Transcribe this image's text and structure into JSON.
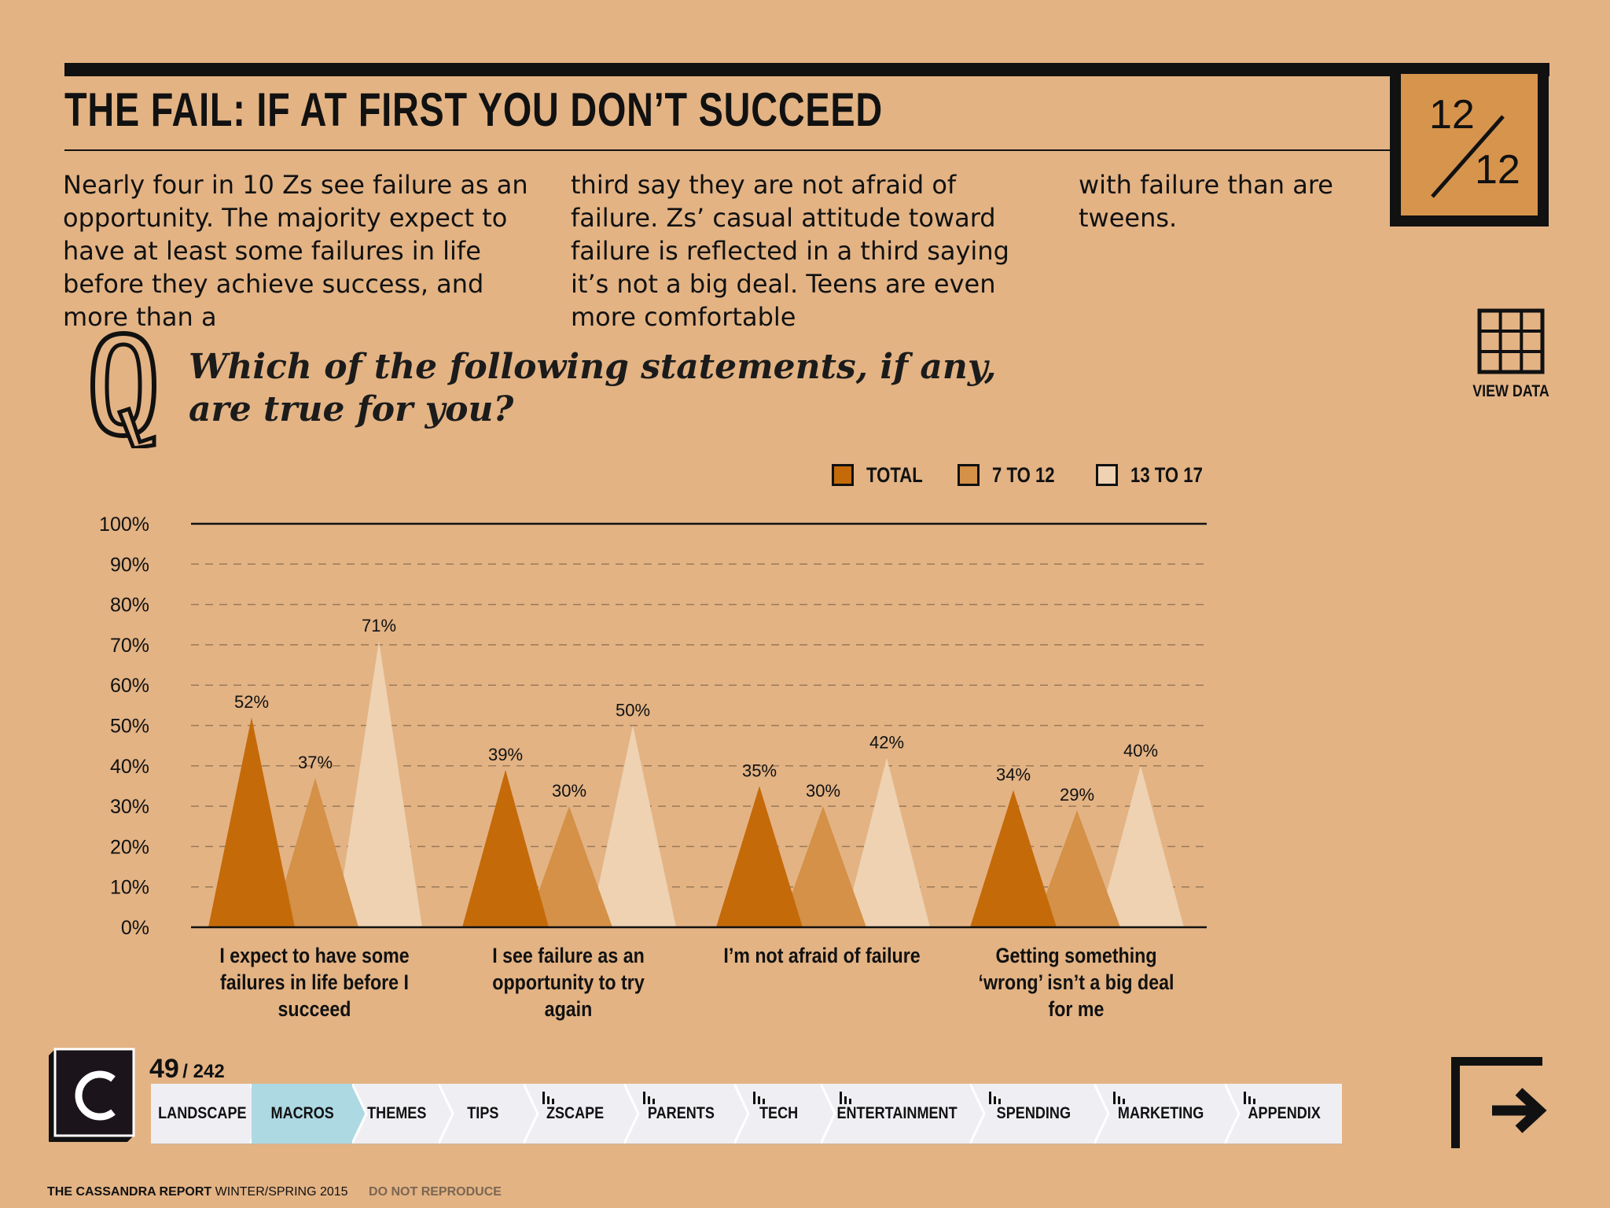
{
  "page": {
    "title": "THE FAIL: IF AT FIRST YOU DON’T SUCCEED",
    "badge": {
      "current": "12",
      "total": "12"
    },
    "intro_columns": [
      "Nearly four in 10 Zs see failure as an opportunity. The majority expect to have at least some failures in life before they achieve success, and more than a",
      "third say they are not afraid of failure. Zs’ casual attitude toward failure is reflected in a third saying it’s not a big deal. Teens are even more comfortable",
      "with failure than are tweens."
    ],
    "view_data_label": "VIEW DATA",
    "question": "Which of the following statements, if any, are true for you?"
  },
  "chart_data": {
    "type": "bar",
    "categories": [
      "I expect to have some failures in life before I succeed",
      "I see failure as an opportunity to try again",
      "I’m not afraid of failure",
      "Getting something ‘wrong’ isn’t a big deal for me"
    ],
    "series": [
      {
        "name": "TOTAL",
        "color": "#c56a09",
        "values": [
          52,
          39,
          35,
          34
        ]
      },
      {
        "name": "7 TO 12",
        "color": "#d49147",
        "values": [
          37,
          30,
          30,
          29
        ]
      },
      {
        "name": "13 TO 17",
        "color": "#eed2b2",
        "values": [
          71,
          50,
          42,
          40
        ]
      }
    ],
    "data_labels": [
      [
        "52%",
        "39%",
        "35%",
        "34%"
      ],
      [
        "37%",
        "30%",
        "30%",
        "29%"
      ],
      [
        "71%",
        "50%",
        "42%",
        "40%"
      ]
    ],
    "yticks": [
      "0%",
      "10%",
      "20%",
      "30%",
      "40%",
      "50%",
      "60%",
      "70%",
      "80%",
      "90%",
      "100%"
    ],
    "ylim": [
      0,
      100
    ],
    "grid": true,
    "legend_position": "top-right",
    "mark_shape": "triangle"
  },
  "footer": {
    "page_current": "49",
    "page_total": "/ 242",
    "nav": [
      {
        "label": "LANDSCAPE",
        "icon": ""
      },
      {
        "label": "MACROS",
        "icon": "",
        "active": true
      },
      {
        "label": "THEMES",
        "icon": ""
      },
      {
        "label": "TIPS",
        "icon": ""
      },
      {
        "label": "ZSCAPE",
        "icon": "bar-chart-icon"
      },
      {
        "label": "PARENTS",
        "icon": "bar-chart-icon"
      },
      {
        "label": "TECH",
        "icon": "bar-chart-icon"
      },
      {
        "label": "ENTERTAINMENT",
        "icon": "bar-chart-icon"
      },
      {
        "label": "SPENDING",
        "icon": "bar-chart-icon"
      },
      {
        "label": "MARKETING",
        "icon": "bar-chart-icon"
      },
      {
        "label": "APPENDIX",
        "icon": "bar-chart-icon"
      }
    ],
    "brand": "THE CASSANDRA REPORT",
    "edition": " WINTER/SPRING 2015",
    "notice": "DO NOT REPRODUCE"
  }
}
